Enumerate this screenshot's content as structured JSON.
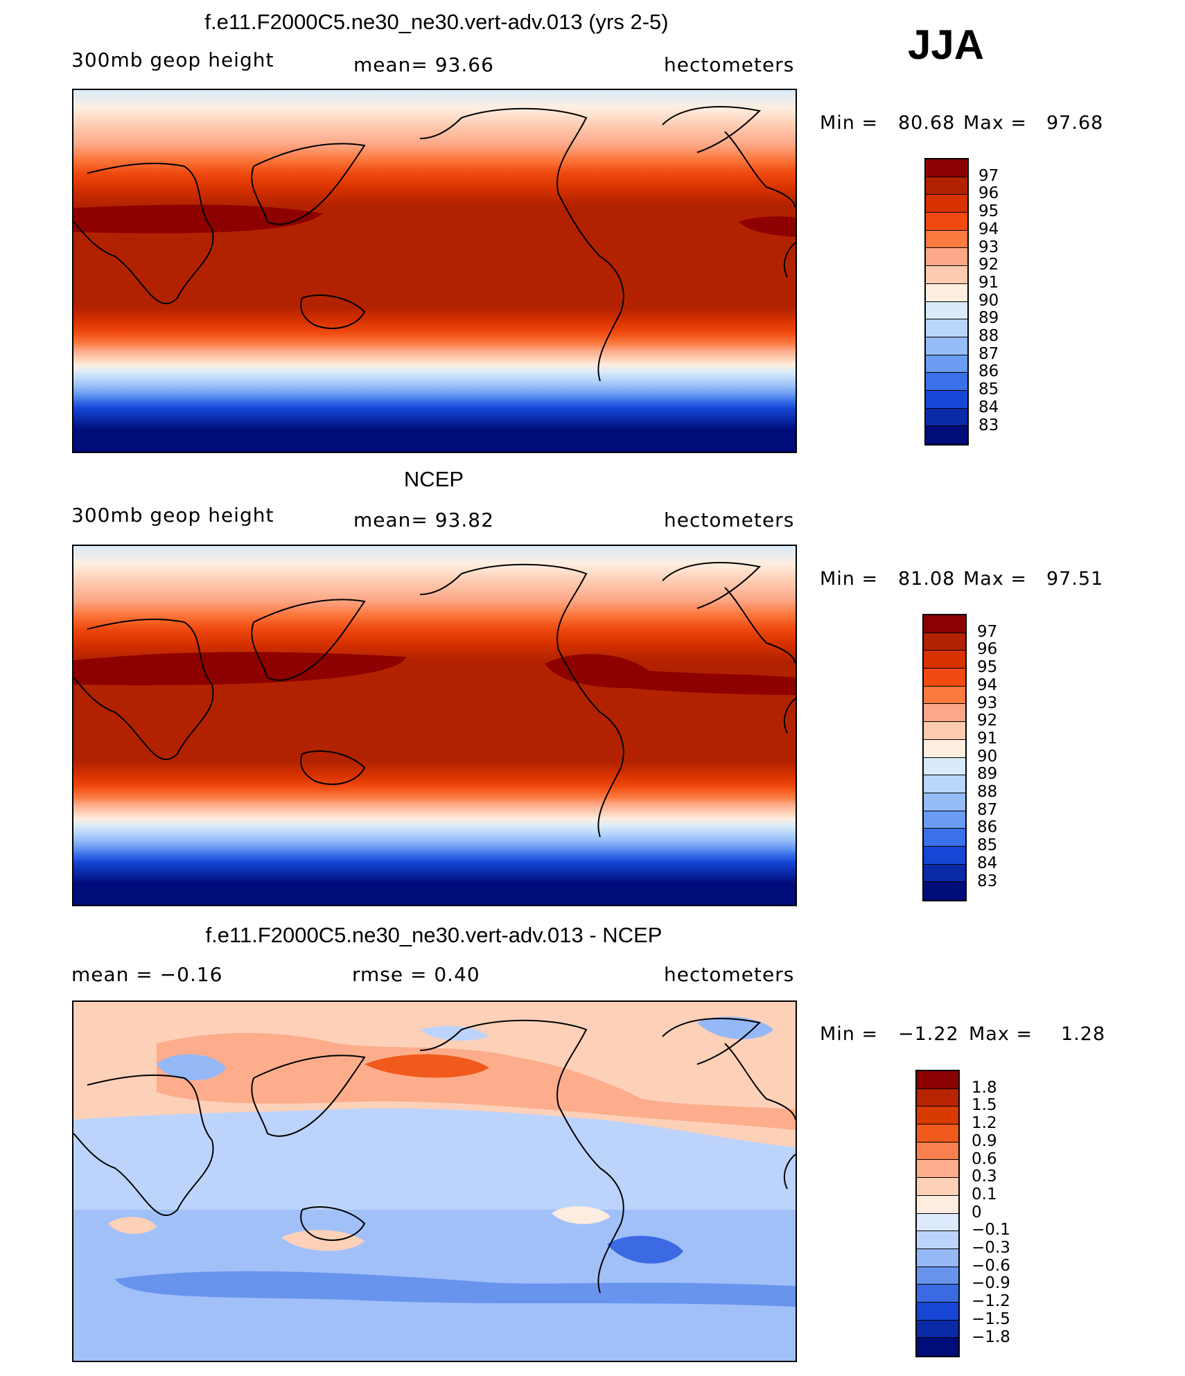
{
  "season": "JJA",
  "palette_warm_to_cool": [
    "#8b0000",
    "#b22200",
    "#d83200",
    "#f04a10",
    "#fb7a40",
    "#fca888",
    "#fdcbb0",
    "#feeee0",
    "#d9ebfa",
    "#b8d6fa",
    "#96bdf8",
    "#6b9cf2",
    "#3a70e8",
    "#1646d6",
    "#0a2aa8",
    "#000c7a"
  ],
  "diff_palette": [
    "#8b0000",
    "#b82300",
    "#d83a00",
    "#f05a1a",
    "#fa8050",
    "#fdad8c",
    "#fdd0b8",
    "#fdece0",
    "#dceafc",
    "#bcd4fb",
    "#95b8f6",
    "#6894ee",
    "#3c6ae3",
    "#1846d4",
    "#0a2aa8",
    "#000c7a"
  ],
  "panels": [
    {
      "title": "f.e11.F2000C5.ne30_ne30.vert-adv.013 (yrs 2-5)",
      "left": "300mb  geop  height",
      "center": "mean=   93.66",
      "right": "hectometers",
      "min_label": "Min  =",
      "min_value": "80.68",
      "max_label": "Max  =",
      "max_value": "97.68",
      "colorbar_labels": [
        "97",
        "96",
        "95",
        "94",
        "93",
        "92",
        "91",
        "90",
        "89",
        "88",
        "87",
        "86",
        "85",
        "84",
        "83"
      ]
    },
    {
      "title": "NCEP",
      "left": "300mb  geop  height",
      "center": "mean=   93.82",
      "right": "hectometers",
      "min_label": "Min  =",
      "min_value": "81.08",
      "max_label": "Max  =",
      "max_value": "97.51",
      "colorbar_labels": [
        "97",
        "96",
        "95",
        "94",
        "93",
        "92",
        "91",
        "90",
        "89",
        "88",
        "87",
        "86",
        "85",
        "84",
        "83"
      ]
    },
    {
      "title": "f.e11.F2000C5.ne30_ne30.vert-adv.013 - NCEP",
      "left": "mean  =    −0.16",
      "center": "rmse  =     0.40",
      "right": "hectometers",
      "min_label": "Min  =",
      "min_value": "−1.22",
      "max_label": "Max  =",
      "max_value": "1.28",
      "colorbar_labels": [
        "1.8",
        "1.5",
        "1.2",
        "0.9",
        "0.6",
        "0.3",
        "0.1",
        "0",
        "−0.1",
        "−0.3",
        "−0.6",
        "−0.9",
        "−1.2",
        "−1.5",
        "−1.8"
      ]
    }
  ]
}
